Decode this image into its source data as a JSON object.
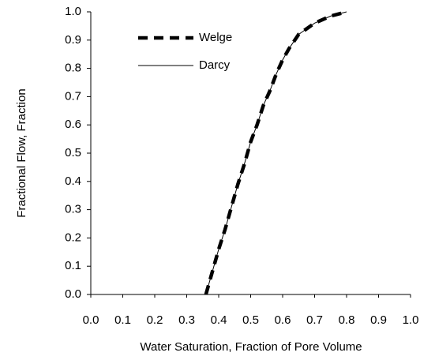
{
  "chart_data": {
    "type": "line",
    "x_label": "Water Saturation, Fraction of Pore Volume",
    "y_label": "Fractional Flow, Fraction",
    "x": [
      0.36,
      0.38,
      0.4,
      0.42,
      0.44,
      0.46,
      0.48,
      0.5,
      0.52,
      0.54,
      0.56,
      0.58,
      0.6,
      0.62,
      0.65,
      0.7,
      0.75,
      0.8
    ],
    "series": [
      {
        "name": "Welge",
        "color": "#000000",
        "line_style": "dashed",
        "values": [
          0,
          0.08,
          0.16,
          0.23,
          0.31,
          0.39,
          0.46,
          0.54,
          0.6,
          0.67,
          0.72,
          0.78,
          0.83,
          0.87,
          0.92,
          0.96,
          0.985,
          1.0
        ]
      },
      {
        "name": "Darcy",
        "color": "#000000",
        "line_style": "solid",
        "values": [
          0,
          0.08,
          0.16,
          0.23,
          0.31,
          0.39,
          0.46,
          0.54,
          0.6,
          0.67,
          0.72,
          0.78,
          0.83,
          0.87,
          0.92,
          0.96,
          0.985,
          1.0
        ]
      }
    ],
    "xlim": [
      0,
      1
    ],
    "ylim": [
      0,
      1
    ],
    "xticks": [
      {
        "value": 0,
        "label": "0.0"
      },
      0.1,
      0.2,
      0.3,
      0.4,
      0.5,
      0.6,
      0.7,
      0.8,
      0.9,
      {
        "value": 1,
        "label": "1.0"
      }
    ],
    "yticks": [
      {
        "value": 0,
        "label": "0.0"
      },
      0.1,
      0.2,
      0.3,
      0.4,
      0.5,
      0.6,
      0.7,
      0.8,
      0.9,
      {
        "value": 1,
        "label": "1.0"
      }
    ],
    "legend": "upper left"
  }
}
